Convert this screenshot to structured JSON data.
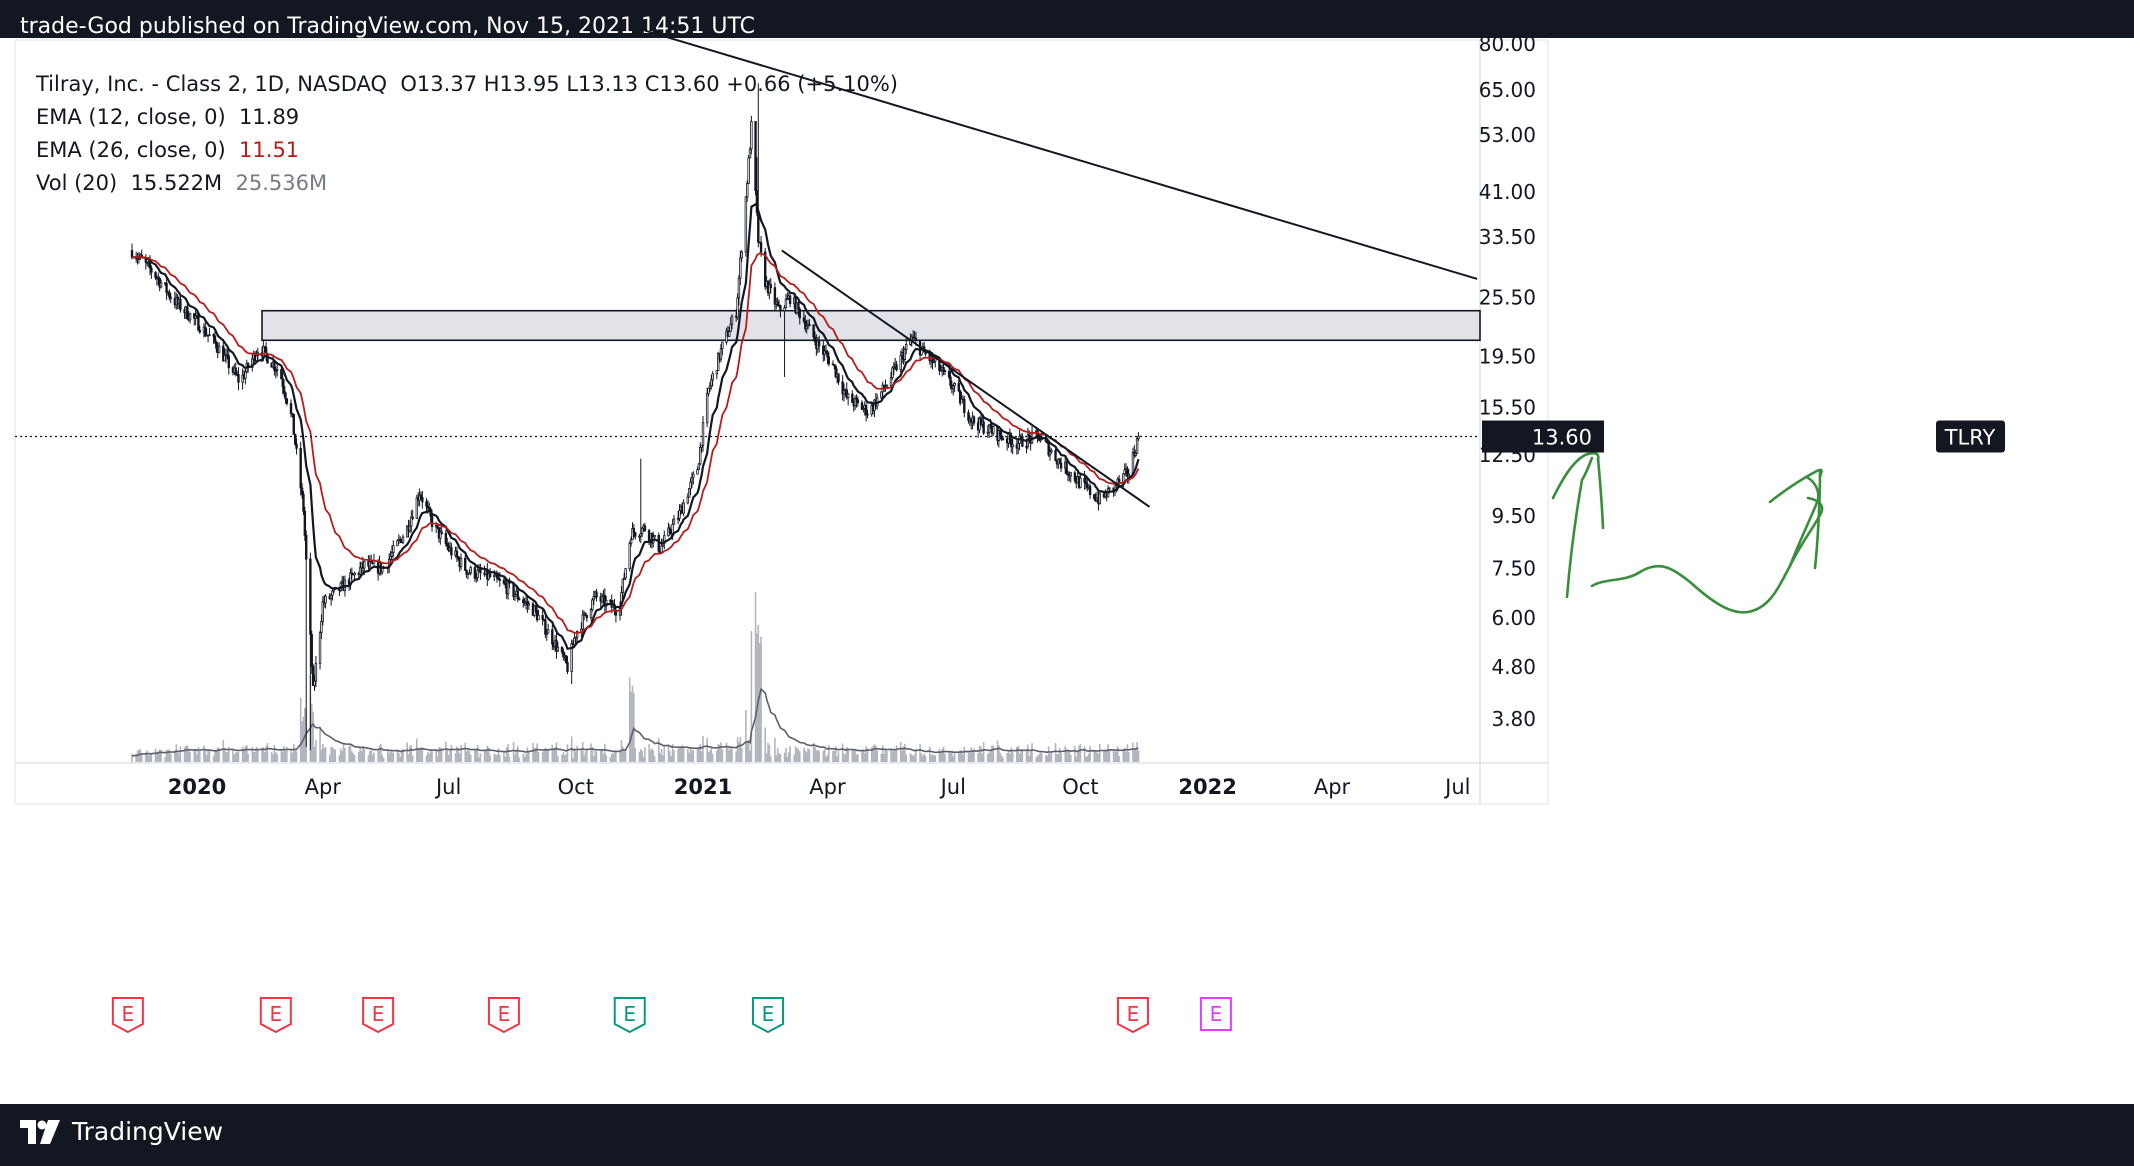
{
  "header": {
    "published_text": "trade-God published on TradingView.com, Nov 15, 2021 14:51 UTC"
  },
  "legend": {
    "symbol_line": "Tilray, Inc. - Class 2, 1D, NASDAQ",
    "ohlc": "O13.37  H13.95  L13.13  C13.60  +0.66 (+5.10%)",
    "ema12_label": "EMA (12, close, 0)",
    "ema12_value": "11.89",
    "ema26_label": "EMA (26, close, 0)",
    "ema26_value": "11.51",
    "vol_label": "Vol (20)",
    "vol_value": "15.522M",
    "vol_avg": "25.536M"
  },
  "price_tag": {
    "symbol": "TLRY",
    "price": "13.60"
  },
  "footer": {
    "brand": "TradingView"
  },
  "colors": {
    "background": "#131722",
    "chart_bg": "#ffffff",
    "ema12": "#131722",
    "ema26": "#b71c1c",
    "earnings_red": "#f23645",
    "earnings_teal": "#089981",
    "earnings_magenta": "#e040fb",
    "annotation_green": "#388e3c",
    "resistance_fill": "#d1d4dc"
  },
  "chart_data": {
    "type": "line",
    "title": "Tilray, Inc. - Class 2, 1D, NASDAQ",
    "y_scale": "log",
    "ylim": [
      3.2,
      82
    ],
    "y_ticks": [
      "80.00",
      "65.00",
      "53.00",
      "41.00",
      "33.50",
      "25.50",
      "19.50",
      "15.50",
      "12.50",
      "9.50",
      "7.50",
      "6.00",
      "4.80",
      "3.80"
    ],
    "x_ticks": [
      "2020",
      "Apr",
      "Jul",
      "Oct",
      "2021",
      "Apr",
      "Jul",
      "Oct",
      "2022",
      "Apr",
      "Jul"
    ],
    "series": [
      {
        "name": "Close",
        "x": [
          "2019-11-15",
          "2019-12-01",
          "2019-12-15",
          "2020-01-01",
          "2020-01-15",
          "2020-02-01",
          "2020-02-15",
          "2020-03-01",
          "2020-03-10",
          "2020-03-18",
          "2020-03-25",
          "2020-04-01",
          "2020-04-15",
          "2020-05-01",
          "2020-05-15",
          "2020-06-01",
          "2020-06-10",
          "2020-06-20",
          "2020-07-01",
          "2020-07-15",
          "2020-08-01",
          "2020-08-15",
          "2020-09-01",
          "2020-09-15",
          "2020-09-25",
          "2020-10-01",
          "2020-10-15",
          "2020-11-01",
          "2020-11-10",
          "2020-11-20",
          "2020-12-01",
          "2020-12-15",
          "2020-12-28",
          "2021-01-05",
          "2021-01-15",
          "2021-01-25",
          "2021-02-01",
          "2021-02-05",
          "2021-02-10",
          "2021-02-15",
          "2021-02-25",
          "2021-03-05",
          "2021-03-15",
          "2021-03-25",
          "2021-04-05",
          "2021-04-15",
          "2021-05-01",
          "2021-05-15",
          "2021-06-01",
          "2021-06-10",
          "2021-06-20",
          "2021-07-01",
          "2021-07-15",
          "2021-08-01",
          "2021-08-15",
          "2021-09-01",
          "2021-09-15",
          "2021-10-01",
          "2021-10-15",
          "2021-10-25",
          "2021-11-05",
          "2021-11-12"
        ],
        "values": [
          31.5,
          28.4,
          25.2,
          22.8,
          20.6,
          17.4,
          20.4,
          18.2,
          14.6,
          9.8,
          4.3,
          6.4,
          6.9,
          7.6,
          7.5,
          9.0,
          10.6,
          9.1,
          8.2,
          7.4,
          7.2,
          6.8,
          6.2,
          5.4,
          4.8,
          5.6,
          6.6,
          6.2,
          8.8,
          9.0,
          8.2,
          9.6,
          11.8,
          16.8,
          20.4,
          24.0,
          40.0,
          55.0,
          33.0,
          27.4,
          24.0,
          25.5,
          23.0,
          20.6,
          18.8,
          16.2,
          15.2,
          17.4,
          21.2,
          19.8,
          18.6,
          17.0,
          14.6,
          13.8,
          13.2,
          13.6,
          12.2,
          11.0,
          10.2,
          10.8,
          11.6,
          13.6
        ]
      },
      {
        "name": "EMA (12, close, 0)",
        "last": 11.89
      },
      {
        "name": "EMA (26, close, 0)",
        "last": 11.51
      }
    ],
    "volume": {
      "name": "Vol (20)",
      "last": "15.522M",
      "average": "25.536M"
    },
    "earnings_markers": [
      {
        "date": "2019-11-12",
        "label": "E",
        "kind": "red"
      },
      {
        "date": "2020-02-27",
        "label": "E",
        "kind": "red"
      },
      {
        "date": "2020-05-11",
        "label": "E",
        "kind": "red"
      },
      {
        "date": "2020-08-10",
        "label": "E",
        "kind": "red"
      },
      {
        "date": "2020-11-09",
        "label": "E",
        "kind": "teal"
      },
      {
        "date": "2021-02-17",
        "label": "E",
        "kind": "teal"
      },
      {
        "date": "2021-11-08",
        "label": "E",
        "kind": "red"
      },
      {
        "date": "2022-01-07",
        "label": "E",
        "kind": "magenta"
      }
    ],
    "last_price": 13.6,
    "annotations": [
      {
        "type": "resistance_zone",
        "low": 21.0,
        "high": 24.0
      },
      {
        "type": "trendline",
        "from": {
          "date": "2020-11-20",
          "price": 85.0
        },
        "to": {
          "date": "2022-07-15",
          "price": 27.7
        }
      },
      {
        "type": "trendline",
        "from": {
          "date": "2021-02-27",
          "price": 31.5
        },
        "to": {
          "date": "2021-11-20",
          "price": 9.9
        }
      }
    ]
  }
}
